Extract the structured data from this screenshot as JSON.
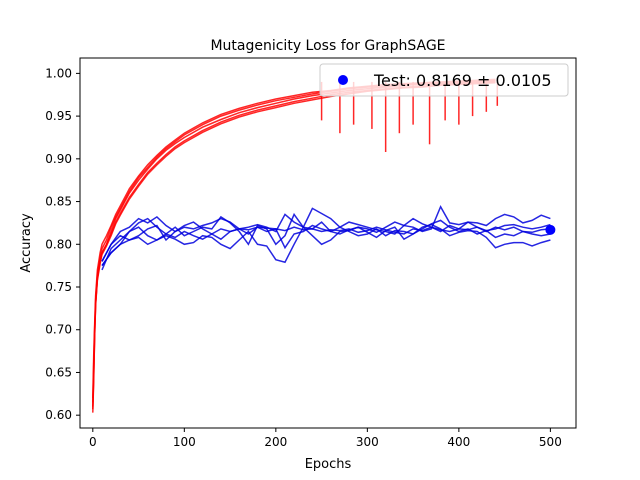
{
  "chart_data": {
    "type": "line",
    "title": "Mutagenicity Loss for GraphSAGE",
    "xlabel": "Epochs",
    "ylabel": "Accuracy",
    "xlim": [
      -14,
      528
    ],
    "ylim": [
      0.585,
      1.018
    ],
    "xticks": [
      0,
      100,
      200,
      300,
      400,
      500
    ],
    "yticks": [
      0.6,
      0.65,
      0.7,
      0.75,
      0.8,
      0.85,
      0.9,
      0.95,
      1.0
    ],
    "xtick_labels": [
      "0",
      "100",
      "200",
      "300",
      "400",
      "500"
    ],
    "ytick_labels": [
      "0.60",
      "0.65",
      "0.70",
      "0.75",
      "0.80",
      "0.85",
      "0.90",
      "0.95",
      "1.00"
    ],
    "legend": {
      "label": "Test: 0.8169 ± 0.0105",
      "position": "top-right"
    },
    "test_point": {
      "x": 500,
      "y": 0.8169
    },
    "colors": {
      "train": "#ff0000",
      "val": "#0000dd",
      "test": "#0000ff"
    },
    "train_runs": [
      {
        "x": [
          0,
          1,
          2,
          3,
          5,
          8,
          10,
          15,
          20,
          25,
          30,
          40,
          50,
          60,
          70,
          80,
          90,
          100,
          120,
          140,
          160,
          180,
          200,
          220,
          240,
          260,
          280,
          300,
          320,
          340,
          360,
          380,
          400,
          420,
          440
        ],
        "y": [
          0.603,
          0.64,
          0.69,
          0.73,
          0.76,
          0.78,
          0.79,
          0.8,
          0.815,
          0.83,
          0.84,
          0.86,
          0.875,
          0.888,
          0.9,
          0.91,
          0.918,
          0.925,
          0.937,
          0.946,
          0.954,
          0.96,
          0.965,
          0.97,
          0.974,
          0.977,
          0.98,
          0.982,
          0.984,
          0.986,
          0.987,
          0.988,
          0.989,
          0.99,
          0.991
        ]
      },
      {
        "x": [
          0,
          1,
          2,
          3,
          5,
          8,
          10,
          15,
          20,
          25,
          30,
          40,
          50,
          60,
          70,
          80,
          90,
          100,
          120,
          140,
          160,
          180,
          200,
          220,
          240,
          260,
          280,
          300,
          320,
          340,
          360,
          380,
          400,
          420,
          440
        ],
        "y": [
          0.615,
          0.66,
          0.7,
          0.735,
          0.765,
          0.785,
          0.795,
          0.805,
          0.82,
          0.832,
          0.842,
          0.862,
          0.878,
          0.89,
          0.902,
          0.912,
          0.92,
          0.928,
          0.94,
          0.95,
          0.957,
          0.963,
          0.968,
          0.972,
          0.976,
          0.979,
          0.982,
          0.984,
          0.985,
          0.987,
          0.988,
          0.989,
          0.99,
          0.991,
          0.992
        ]
      },
      {
        "x": [
          0,
          1,
          2,
          3,
          5,
          8,
          10,
          15,
          20,
          25,
          30,
          40,
          50,
          60,
          70,
          80,
          90,
          100,
          120,
          140,
          160,
          180,
          200,
          220,
          240,
          260,
          280,
          300,
          320,
          340,
          360,
          380,
          400,
          420,
          440
        ],
        "y": [
          0.61,
          0.65,
          0.695,
          0.73,
          0.76,
          0.78,
          0.79,
          0.8,
          0.812,
          0.826,
          0.836,
          0.855,
          0.87,
          0.884,
          0.895,
          0.905,
          0.914,
          0.921,
          0.933,
          0.943,
          0.951,
          0.957,
          0.962,
          0.967,
          0.971,
          0.975,
          0.978,
          0.98,
          0.982,
          0.984,
          0.985,
          0.987,
          0.988,
          0.989,
          0.99
        ]
      },
      {
        "x": [
          0,
          1,
          2,
          3,
          5,
          8,
          10,
          15,
          20,
          25,
          30,
          40,
          50,
          60,
          70,
          80,
          90,
          100,
          120,
          140,
          160,
          180,
          200,
          220,
          240,
          260,
          280,
          300,
          320,
          340,
          360,
          380,
          400,
          420,
          440
        ],
        "y": [
          0.62,
          0.67,
          0.705,
          0.74,
          0.77,
          0.79,
          0.8,
          0.81,
          0.822,
          0.835,
          0.845,
          0.865,
          0.88,
          0.893,
          0.904,
          0.914,
          0.922,
          0.93,
          0.942,
          0.952,
          0.959,
          0.965,
          0.97,
          0.974,
          0.978,
          0.98,
          0.983,
          0.985,
          0.987,
          0.988,
          0.989,
          0.99,
          0.991,
          0.992,
          0.993
        ]
      },
      {
        "x": [
          0,
          1,
          2,
          3,
          5,
          8,
          10,
          15,
          20,
          25,
          30,
          40,
          50,
          60,
          70,
          80,
          90,
          100,
          120,
          140,
          160,
          180,
          200,
          220,
          240,
          260,
          280,
          300,
          320,
          340,
          360,
          380,
          400,
          420,
          440
        ],
        "y": [
          0.607,
          0.645,
          0.69,
          0.728,
          0.758,
          0.777,
          0.788,
          0.798,
          0.81,
          0.824,
          0.834,
          0.853,
          0.868,
          0.882,
          0.893,
          0.903,
          0.912,
          0.919,
          0.931,
          0.941,
          0.949,
          0.955,
          0.96,
          0.965,
          0.969,
          0.973,
          0.976,
          0.979,
          0.981,
          0.983,
          0.984,
          0.986,
          0.987,
          0.988,
          0.989
        ]
      }
    ],
    "train_dips": [
      {
        "x": 250,
        "y": 0.945
      },
      {
        "x": 270,
        "y": 0.93
      },
      {
        "x": 285,
        "y": 0.94
      },
      {
        "x": 305,
        "y": 0.935
      },
      {
        "x": 320,
        "y": 0.908
      },
      {
        "x": 335,
        "y": 0.93
      },
      {
        "x": 350,
        "y": 0.94
      },
      {
        "x": 368,
        "y": 0.917
      },
      {
        "x": 385,
        "y": 0.945
      },
      {
        "x": 400,
        "y": 0.94
      },
      {
        "x": 415,
        "y": 0.95
      },
      {
        "x": 430,
        "y": 0.955
      },
      {
        "x": 442,
        "y": 0.962
      }
    ],
    "val_runs": [
      {
        "x": [
          10,
          20,
          30,
          40,
          50,
          60,
          70,
          80,
          90,
          100,
          110,
          120,
          130,
          140,
          150,
          160,
          170,
          180,
          190,
          200,
          210,
          220,
          230,
          240,
          250,
          260,
          270,
          280,
          290,
          300,
          310,
          320,
          330,
          340,
          350,
          360,
          370,
          380,
          390,
          400,
          410,
          420,
          430,
          440,
          450,
          460,
          470,
          480,
          490,
          500
        ],
        "y": [
          0.77,
          0.795,
          0.805,
          0.815,
          0.82,
          0.81,
          0.805,
          0.812,
          0.808,
          0.815,
          0.81,
          0.806,
          0.812,
          0.818,
          0.815,
          0.818,
          0.817,
          0.82,
          0.819,
          0.818,
          0.816,
          0.82,
          0.817,
          0.818,
          0.815,
          0.817,
          0.816,
          0.818,
          0.814,
          0.816,
          0.82,
          0.817,
          0.814,
          0.812,
          0.818,
          0.816,
          0.82,
          0.817,
          0.815,
          0.818,
          0.817,
          0.82,
          0.816,
          0.818,
          0.822,
          0.823,
          0.82,
          0.818,
          0.82,
          0.823
        ]
      },
      {
        "x": [
          10,
          20,
          30,
          40,
          50,
          60,
          70,
          80,
          90,
          100,
          110,
          120,
          130,
          140,
          150,
          160,
          170,
          180,
          190,
          200,
          210,
          220,
          230,
          240,
          250,
          260,
          270,
          280,
          290,
          300,
          310,
          320,
          330,
          340,
          350,
          360,
          370,
          380,
          390,
          400,
          410,
          420,
          430,
          440,
          450,
          460,
          470,
          480,
          490,
          500
        ],
        "y": [
          0.78,
          0.8,
          0.815,
          0.82,
          0.83,
          0.825,
          0.832,
          0.822,
          0.815,
          0.82,
          0.818,
          0.822,
          0.825,
          0.83,
          0.826,
          0.818,
          0.82,
          0.823,
          0.82,
          0.815,
          0.835,
          0.826,
          0.82,
          0.842,
          0.836,
          0.83,
          0.82,
          0.826,
          0.823,
          0.82,
          0.817,
          0.815,
          0.812,
          0.822,
          0.82,
          0.815,
          0.818,
          0.844,
          0.825,
          0.823,
          0.826,
          0.825,
          0.822,
          0.83,
          0.835,
          0.832,
          0.825,
          0.828,
          0.834,
          0.83
        ]
      },
      {
        "x": [
          10,
          20,
          30,
          40,
          50,
          60,
          70,
          80,
          90,
          100,
          110,
          120,
          130,
          140,
          150,
          160,
          170,
          180,
          190,
          200,
          210,
          220,
          230,
          240,
          250,
          260,
          270,
          280,
          290,
          300,
          310,
          320,
          330,
          340,
          350,
          360,
          370,
          380,
          390,
          400,
          410,
          420,
          430,
          440,
          450,
          460,
          470,
          480,
          490,
          500
        ],
        "y": [
          0.775,
          0.79,
          0.8,
          0.815,
          0.825,
          0.83,
          0.82,
          0.812,
          0.82,
          0.81,
          0.815,
          0.82,
          0.818,
          0.832,
          0.825,
          0.815,
          0.8,
          0.822,
          0.818,
          0.8,
          0.81,
          0.835,
          0.82,
          0.818,
          0.826,
          0.815,
          0.812,
          0.817,
          0.82,
          0.818,
          0.814,
          0.82,
          0.826,
          0.822,
          0.83,
          0.824,
          0.82,
          0.815,
          0.822,
          0.818,
          0.826,
          0.82,
          0.815,
          0.82,
          0.817,
          0.82,
          0.815,
          0.814,
          0.817,
          0.818
        ]
      },
      {
        "x": [
          10,
          20,
          30,
          40,
          50,
          60,
          70,
          80,
          90,
          100,
          110,
          120,
          130,
          140,
          150,
          160,
          170,
          180,
          190,
          200,
          210,
          220,
          230,
          240,
          250,
          260,
          270,
          280,
          290,
          300,
          310,
          320,
          330,
          340,
          350,
          360,
          370,
          380,
          390,
          400,
          410,
          420,
          430,
          440,
          450,
          460,
          470,
          480,
          490,
          500
        ],
        "y": [
          0.78,
          0.8,
          0.81,
          0.805,
          0.81,
          0.818,
          0.822,
          0.805,
          0.815,
          0.822,
          0.826,
          0.818,
          0.812,
          0.806,
          0.815,
          0.818,
          0.812,
          0.82,
          0.815,
          0.818,
          0.796,
          0.812,
          0.815,
          0.822,
          0.818,
          0.815,
          0.82,
          0.815,
          0.81,
          0.812,
          0.818,
          0.81,
          0.816,
          0.815,
          0.812,
          0.818,
          0.824,
          0.828,
          0.82,
          0.815,
          0.818,
          0.812,
          0.816,
          0.808,
          0.812,
          0.81,
          0.815,
          0.812,
          0.81,
          0.812
        ]
      },
      {
        "x": [
          10,
          20,
          30,
          40,
          50,
          60,
          70,
          80,
          90,
          100,
          110,
          120,
          130,
          140,
          150,
          160,
          170,
          180,
          190,
          200,
          210,
          220,
          230,
          240,
          250,
          260,
          270,
          280,
          290,
          300,
          310,
          320,
          330,
          340,
          350,
          360,
          370,
          380,
          390,
          400,
          410,
          420,
          430,
          440,
          450,
          460,
          470,
          480,
          490,
          500
        ],
        "y": [
          0.775,
          0.79,
          0.8,
          0.805,
          0.808,
          0.8,
          0.805,
          0.81,
          0.806,
          0.8,
          0.802,
          0.81,
          0.808,
          0.8,
          0.795,
          0.805,
          0.815,
          0.8,
          0.798,
          0.782,
          0.779,
          0.8,
          0.82,
          0.81,
          0.8,
          0.805,
          0.815,
          0.816,
          0.82,
          0.814,
          0.808,
          0.816,
          0.82,
          0.806,
          0.812,
          0.82,
          0.823,
          0.818,
          0.81,
          0.814,
          0.816,
          0.815,
          0.808,
          0.796,
          0.8,
          0.802,
          0.802,
          0.798,
          0.802,
          0.805
        ]
      }
    ]
  }
}
